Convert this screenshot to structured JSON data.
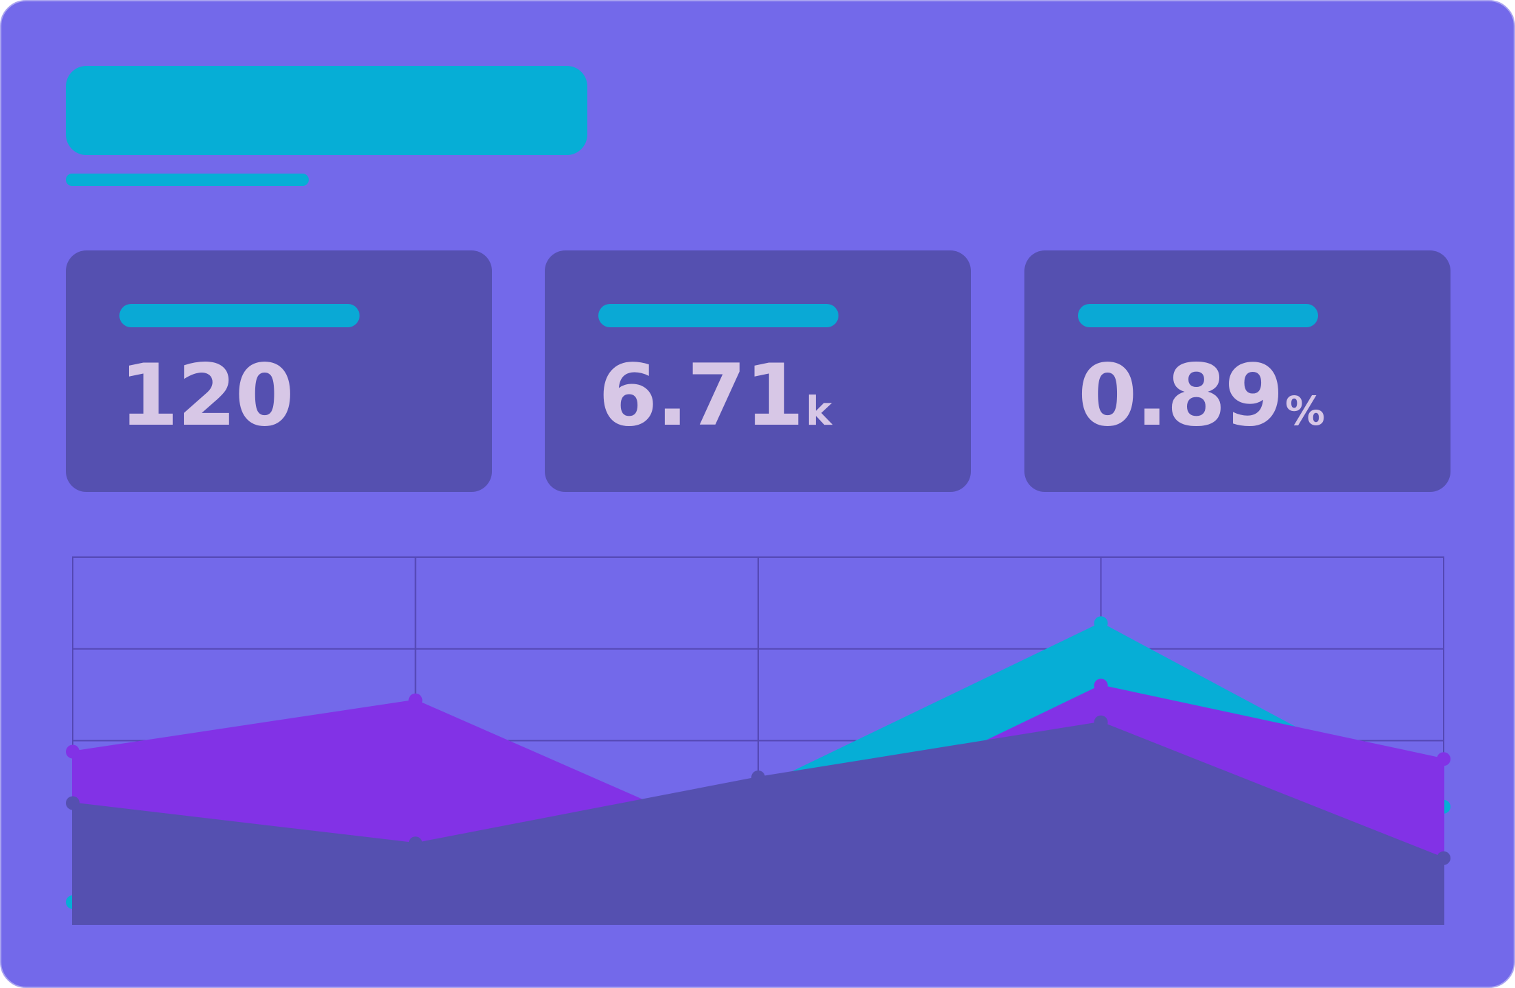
{
  "colors": {
    "background": "#7369ea",
    "card": "#5550b0",
    "accent": "#06aed6",
    "value_text": "#d7c7e6",
    "grid": "#5448b4"
  },
  "stats": [
    {
      "value": "120",
      "unit": ""
    },
    {
      "value": "6.71",
      "unit": "k"
    },
    {
      "value": "0.89",
      "unit": "%"
    }
  ],
  "chart_data": {
    "type": "area",
    "x": [
      0,
      1,
      2,
      3,
      4
    ],
    "ylim": [
      0,
      100
    ],
    "grid": true,
    "series": [
      {
        "color": "#06aed6",
        "values": [
          6,
          18,
          37,
          82,
          32
        ]
      },
      {
        "color": "#8232e6",
        "values": [
          47,
          61,
          20,
          65,
          45
        ]
      },
      {
        "color": "#5550b0",
        "values": [
          33,
          22,
          40,
          55,
          18
        ]
      }
    ]
  }
}
